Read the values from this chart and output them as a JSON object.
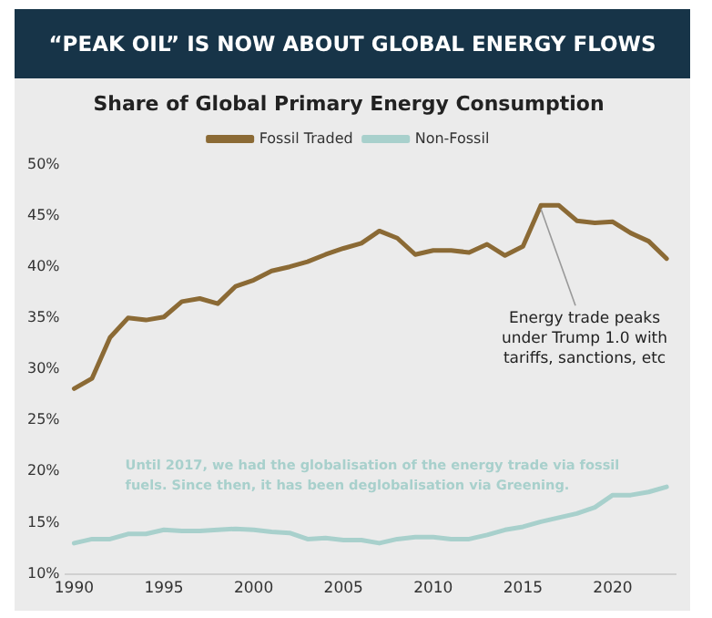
{
  "chart_data": {
    "type": "line",
    "title": "“PEAK OIL” IS NOW ABOUT GLOBAL ENERGY FLOWS",
    "subtitle": "Share of Global Primary Energy Consumption",
    "x": [
      1990,
      1991,
      1992,
      1993,
      1994,
      1995,
      1996,
      1997,
      1998,
      1999,
      2000,
      2001,
      2002,
      2003,
      2004,
      2005,
      2006,
      2007,
      2008,
      2009,
      2010,
      2011,
      2012,
      2013,
      2014,
      2015,
      2016,
      2017,
      2018,
      2019,
      2020,
      2021,
      2022,
      2023
    ],
    "series": [
      {
        "name": "Fossil Traded",
        "color": "#8b6a35",
        "values": [
          28.1,
          29.1,
          33.1,
          35.0,
          34.8,
          35.1,
          36.6,
          36.9,
          36.4,
          38.1,
          38.7,
          39.6,
          40.0,
          40.5,
          41.2,
          41.8,
          42.3,
          43.5,
          42.8,
          41.2,
          41.6,
          41.6,
          41.4,
          42.2,
          41.1,
          42.0,
          46.0,
          46.0,
          44.5,
          44.3,
          44.4,
          43.3,
          42.5,
          40.8
        ]
      },
      {
        "name": "Non-Fossil",
        "color": "#a8d0cc",
        "values": [
          13.0,
          13.4,
          13.4,
          13.9,
          13.9,
          14.3,
          14.2,
          14.2,
          14.3,
          14.4,
          14.3,
          14.1,
          14.0,
          13.4,
          13.5,
          13.3,
          13.3,
          13.0,
          13.4,
          13.6,
          13.6,
          13.4,
          13.4,
          13.8,
          14.3,
          14.6,
          15.1,
          15.5,
          15.9,
          16.5,
          17.7,
          17.7,
          18.0,
          18.5
        ]
      }
    ],
    "xlim": [
      1989.5,
      2023.5
    ],
    "xticks": [
      1990,
      1995,
      2000,
      2005,
      2010,
      2015,
      2020
    ],
    "ylim": [
      10,
      50
    ],
    "yticks": [
      {
        "value": 10,
        "label": "10%"
      },
      {
        "value": 15,
        "label": "15%"
      },
      {
        "value": 20,
        "label": "20%"
      },
      {
        "value": 25,
        "label": "25%"
      },
      {
        "value": 30,
        "label": "30%"
      },
      {
        "value": 35,
        "label": "35%"
      },
      {
        "value": 40,
        "label": "40%"
      },
      {
        "value": 45,
        "label": "45%"
      },
      {
        "value": 50,
        "label": "50%"
      }
    ],
    "annotations": [
      {
        "text": "Energy trade peaks under Trump 1.0 with tariffs, sanctions, etc",
        "x": 2016,
        "y": 46
      },
      "Until 2017, we had the globalisation of the energy trade via fossil fuels. Since then, it has been deglobalisation via Greening."
    ],
    "grid": false,
    "legend": "top",
    "marker": "none",
    "line_style": "solid"
  }
}
